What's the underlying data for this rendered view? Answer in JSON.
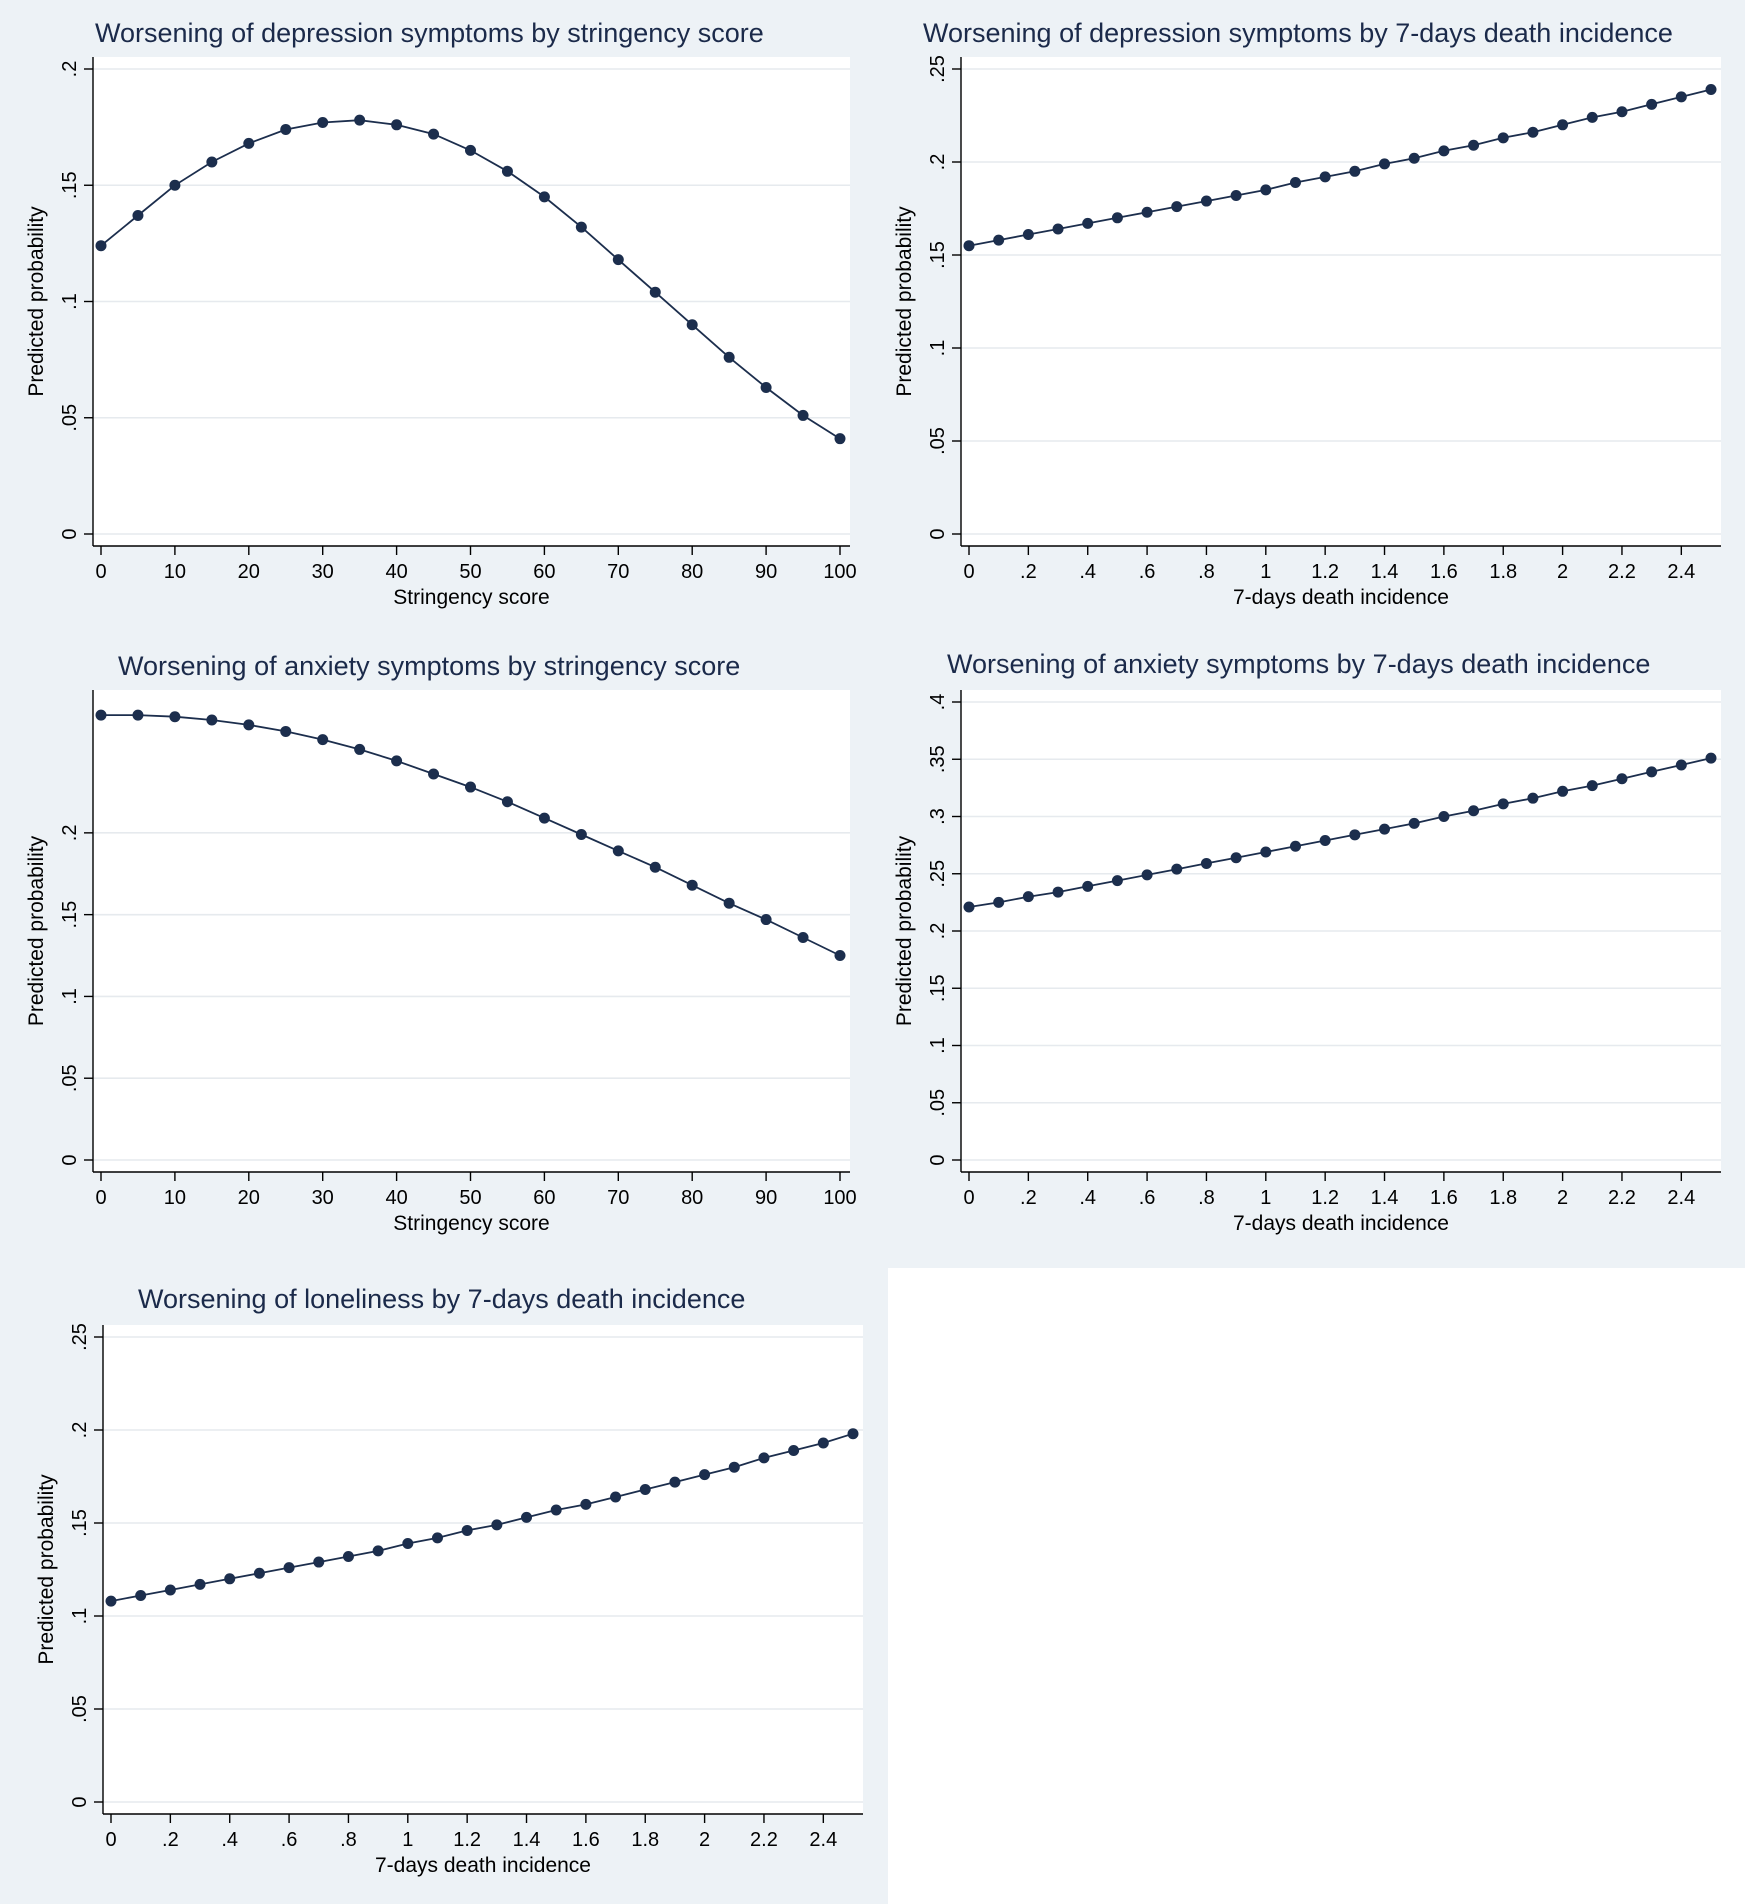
{
  "colors": {
    "panel_background": "#edf2f6",
    "plot_background": "#ffffff",
    "series": "#1c2e4d",
    "title": "#1b2a4a",
    "grid": "#e6eaee"
  },
  "chart_data": [
    {
      "type": "line",
      "title": "Worsening of depression symptoms by stringency score",
      "xlabel": "Stringency score",
      "ylabel": "Predicted probability",
      "x": [
        0,
        5,
        10,
        15,
        20,
        25,
        30,
        35,
        40,
        45,
        50,
        55,
        60,
        65,
        70,
        75,
        80,
        85,
        90,
        95,
        100
      ],
      "y": [
        0.124,
        0.137,
        0.15,
        0.16,
        0.168,
        0.174,
        0.177,
        0.178,
        0.176,
        0.172,
        0.165,
        0.156,
        0.145,
        0.132,
        0.118,
        0.104,
        0.09,
        0.076,
        0.063,
        0.051,
        0.041
      ],
      "xlim": [
        0,
        100
      ],
      "ylim": [
        0,
        0.2
      ],
      "x_ticks": [
        0,
        10,
        20,
        30,
        40,
        50,
        60,
        70,
        80,
        90,
        100
      ],
      "x_tick_labels": [
        "0",
        "10",
        "20",
        "30",
        "40",
        "50",
        "60",
        "70",
        "80",
        "90",
        "100"
      ],
      "y_ticks": [
        0,
        0.05,
        0.1,
        0.15,
        0.2
      ],
      "y_tick_labels": [
        "0",
        ".05",
        ".1",
        ".15",
        ".2"
      ],
      "grid": true
    },
    {
      "type": "line",
      "title": "Worsening of depression symptoms by 7-days death incidence",
      "xlabel": "7-days death incidence",
      "ylabel": "Predicted probability",
      "x": [
        0,
        0.1,
        0.2,
        0.3,
        0.4,
        0.5,
        0.6,
        0.7,
        0.8,
        0.9,
        1.0,
        1.1,
        1.2,
        1.3,
        1.4,
        1.5,
        1.6,
        1.7,
        1.8,
        1.9,
        2.0,
        2.1,
        2.2,
        2.3,
        2.4,
        2.5
      ],
      "y": [
        0.155,
        0.158,
        0.161,
        0.164,
        0.167,
        0.17,
        0.173,
        0.176,
        0.179,
        0.182,
        0.185,
        0.189,
        0.192,
        0.195,
        0.199,
        0.202,
        0.206,
        0.209,
        0.213,
        0.216,
        0.22,
        0.224,
        0.227,
        0.231,
        0.235,
        0.239
      ],
      "xlim": [
        0,
        2.5
      ],
      "ylim": [
        0,
        0.25
      ],
      "x_ticks": [
        0,
        0.2,
        0.4,
        0.6,
        0.8,
        1,
        1.2,
        1.4,
        1.6,
        1.8,
        2,
        2.2,
        2.4
      ],
      "x_tick_labels": [
        "0",
        ".2",
        ".4",
        ".6",
        ".8",
        "1",
        "1.2",
        "1.4",
        "1.6",
        "1.8",
        "2",
        "2.2",
        "2.4"
      ],
      "y_ticks": [
        0,
        0.05,
        0.1,
        0.15,
        0.2,
        0.25
      ],
      "y_tick_labels": [
        "0",
        ".05",
        ".1",
        ".15",
        ".2",
        ".25"
      ],
      "grid": true
    },
    {
      "type": "line",
      "title": "Worsening of anxiety symptoms by stringency score",
      "xlabel": "Stringency score",
      "ylabel": "Predicted probability",
      "x": [
        0,
        5,
        10,
        15,
        20,
        25,
        30,
        35,
        40,
        45,
        50,
        55,
        60,
        65,
        70,
        75,
        80,
        85,
        90,
        95,
        100
      ],
      "y": [
        0.272,
        0.272,
        0.271,
        0.269,
        0.266,
        0.262,
        0.257,
        0.251,
        0.244,
        0.236,
        0.228,
        0.219,
        0.209,
        0.199,
        0.189,
        0.179,
        0.168,
        0.157,
        0.147,
        0.136,
        0.125
      ],
      "xlim": [
        0,
        100
      ],
      "ylim": [
        0,
        0.28
      ],
      "x_ticks": [
        0,
        10,
        20,
        30,
        40,
        50,
        60,
        70,
        80,
        90,
        100
      ],
      "x_tick_labels": [
        "0",
        "10",
        "20",
        "30",
        "40",
        "50",
        "60",
        "70",
        "80",
        "90",
        "100"
      ],
      "y_ticks": [
        0,
        0.05,
        0.1,
        0.15,
        0.2
      ],
      "y_tick_labels": [
        "0",
        ".05",
        ".1",
        ".15",
        ".2"
      ],
      "grid": true
    },
    {
      "type": "line",
      "title": "Worsening of anxiety symptoms by 7-days death incidence",
      "xlabel": "7-days death incidence",
      "ylabel": "Predicted probability",
      "x": [
        0,
        0.1,
        0.2,
        0.3,
        0.4,
        0.5,
        0.6,
        0.7,
        0.8,
        0.9,
        1.0,
        1.1,
        1.2,
        1.3,
        1.4,
        1.5,
        1.6,
        1.7,
        1.8,
        1.9,
        2.0,
        2.1,
        2.2,
        2.3,
        2.4,
        2.5
      ],
      "y": [
        0.221,
        0.225,
        0.23,
        0.234,
        0.239,
        0.244,
        0.249,
        0.254,
        0.259,
        0.264,
        0.269,
        0.274,
        0.279,
        0.284,
        0.289,
        0.294,
        0.3,
        0.305,
        0.311,
        0.316,
        0.322,
        0.327,
        0.333,
        0.339,
        0.345,
        0.351
      ],
      "xlim": [
        0,
        2.5
      ],
      "ylim": [
        0,
        0.4
      ],
      "x_ticks": [
        0,
        0.2,
        0.4,
        0.6,
        0.8,
        1,
        1.2,
        1.4,
        1.6,
        1.8,
        2,
        2.2,
        2.4
      ],
      "x_tick_labels": [
        "0",
        ".2",
        ".4",
        ".6",
        ".8",
        "1",
        "1.2",
        "1.4",
        "1.6",
        "1.8",
        "2",
        "2.2",
        "2.4"
      ],
      "y_ticks": [
        0,
        0.05,
        0.1,
        0.15,
        0.2,
        0.25,
        0.3,
        0.35,
        0.4
      ],
      "y_tick_labels": [
        "0",
        ".05",
        ".1",
        ".15",
        ".2",
        ".25",
        ".3",
        ".35",
        ".4"
      ],
      "grid": true
    },
    {
      "type": "line",
      "title": "Worsening of loneliness by 7-days death incidence",
      "xlabel": "7-days death incidence",
      "ylabel": "Predicted probability",
      "x": [
        0,
        0.1,
        0.2,
        0.3,
        0.4,
        0.5,
        0.6,
        0.7,
        0.8,
        0.9,
        1.0,
        1.1,
        1.2,
        1.3,
        1.4,
        1.5,
        1.6,
        1.7,
        1.8,
        1.9,
        2.0,
        2.1,
        2.2,
        2.3,
        2.4,
        2.5
      ],
      "y": [
        0.108,
        0.111,
        0.114,
        0.117,
        0.12,
        0.123,
        0.126,
        0.129,
        0.132,
        0.135,
        0.139,
        0.142,
        0.146,
        0.149,
        0.153,
        0.157,
        0.16,
        0.164,
        0.168,
        0.172,
        0.176,
        0.18,
        0.185,
        0.189,
        0.193,
        0.198
      ],
      "xlim": [
        0,
        2.5
      ],
      "ylim": [
        0,
        0.25
      ],
      "x_ticks": [
        0,
        0.2,
        0.4,
        0.6,
        0.8,
        1,
        1.2,
        1.4,
        1.6,
        1.8,
        2,
        2.2,
        2.4
      ],
      "x_tick_labels": [
        "0",
        ".2",
        ".4",
        ".6",
        ".8",
        "1",
        "1.2",
        "1.4",
        "1.6",
        "1.8",
        "2",
        "2.2",
        "2.4"
      ],
      "y_ticks": [
        0,
        0.05,
        0.1,
        0.15,
        0.2,
        0.25
      ],
      "y_tick_labels": [
        "0",
        ".05",
        ".1",
        ".15",
        ".2",
        ".25"
      ],
      "grid": true
    }
  ]
}
